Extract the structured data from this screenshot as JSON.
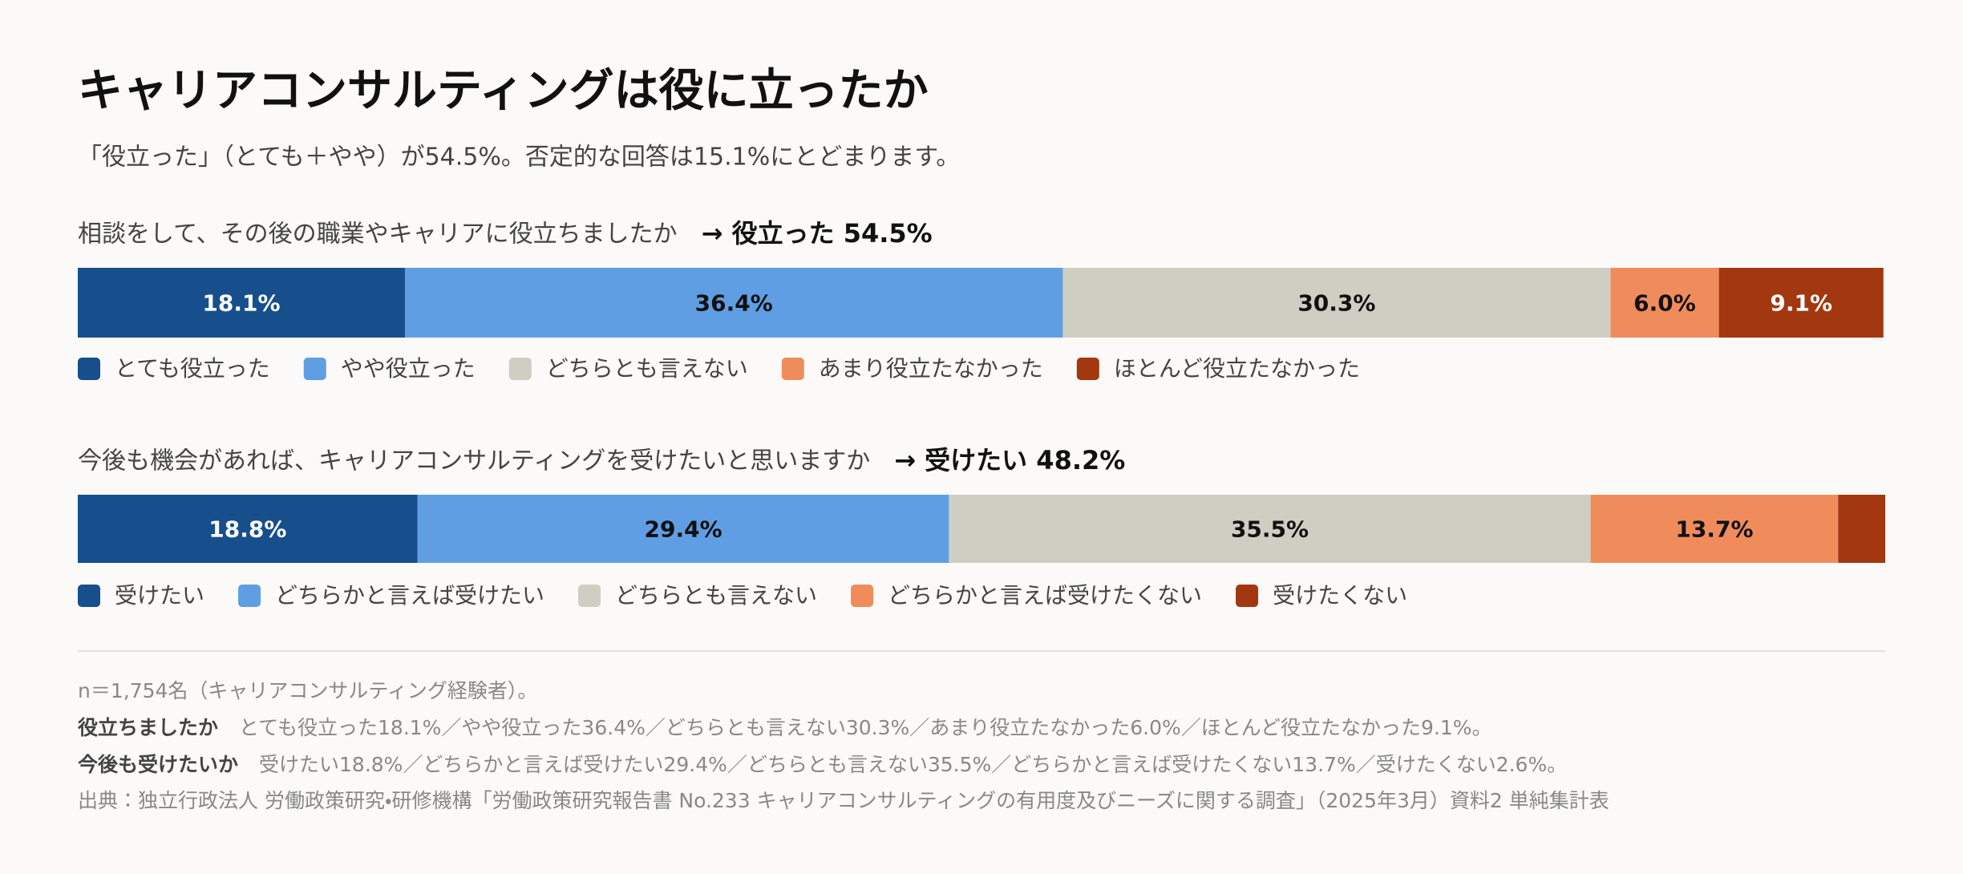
{
  "header": {
    "title": "キャリアコンサルティングは役に立ったか",
    "subtitle": "「役立った」（とても＋やや）が54.5%。否定的な回答は15.1%にとどまります。"
  },
  "chart_data": [
    {
      "type": "stacked_bar",
      "title": "相談をして、その後の職業やキャリアに役立ちましたか",
      "annotation": "→ 役立った 54.5%",
      "xlim": [
        0,
        100
      ],
      "series": [
        {
          "name": "とても役立った",
          "color": "#164f8c",
          "values": [
            18.1
          ],
          "value_labels": [
            "18.1%"
          ]
        },
        {
          "name": "やや役立った",
          "color": "#5f9ee3",
          "values": [
            36.4
          ],
          "value_labels": [
            "36.4%"
          ]
        },
        {
          "name": "どちらとも言えない",
          "color": "#cfcec3",
          "values": [
            30.3
          ],
          "value_labels": [
            "30.3%"
          ]
        },
        {
          "name": "あまり役立たなかった",
          "color": "#f08c5c",
          "values": [
            6.0
          ],
          "value_labels": [
            "6.0%"
          ]
        },
        {
          "name": "ほとんど役立たなかった",
          "color": "#a3370f",
          "values": [
            9.1
          ],
          "value_labels": [
            "9.1%"
          ]
        }
      ]
    },
    {
      "type": "stacked_bar",
      "title": "今後も機会があれば、キャリアコンサルティングを受けたいと思いますか",
      "annotation": "→ 受けたい 48.2%",
      "xlim": [
        0,
        100
      ],
      "series": [
        {
          "name": "受けたい",
          "color": "#164f8c",
          "values": [
            18.8
          ],
          "value_labels": [
            "18.8%"
          ]
        },
        {
          "name": "どちらかと言えば受けたい",
          "color": "#5f9ee3",
          "values": [
            29.4
          ],
          "value_labels": [
            "29.4%"
          ]
        },
        {
          "name": "どちらとも言えない",
          "color": "#cfcec3",
          "values": [
            35.5
          ],
          "value_labels": [
            "35.5%"
          ]
        },
        {
          "name": "どちらかと言えば受けたくない",
          "color": "#f08c5c",
          "values": [
            13.7
          ],
          "value_labels": [
            "13.7%"
          ]
        },
        {
          "name": "受けたくない",
          "color": "#a3370f",
          "values": [
            2.6
          ]
        }
      ]
    }
  ],
  "notes": {
    "sample": "n＝1,754名（キャリアコンサルティング経験者）。",
    "details": [
      {
        "label": "役立ちましたか",
        "text": "とても役立った18.1%／やや役立った36.4%／どちらとも言えない30.3%／あまり役立たなかった6.0%／ほとんど役立たなかった9.1%。"
      },
      {
        "label": "今後も受けたいか",
        "text": "受けたい18.8%／どちらかと言えば受けたい29.4%／どちらとも言えない35.5%／どちらかと言えば受けたくない13.7%／受けたくない2.6%。"
      }
    ],
    "source": "出典：独立行政法人 労働政策研究・研修機構「労働政策研究報告書 No.233 キャリアコンサルティングの有用度及びニーズに関する調査」（2025年3月）資料2 単純集計表"
  }
}
